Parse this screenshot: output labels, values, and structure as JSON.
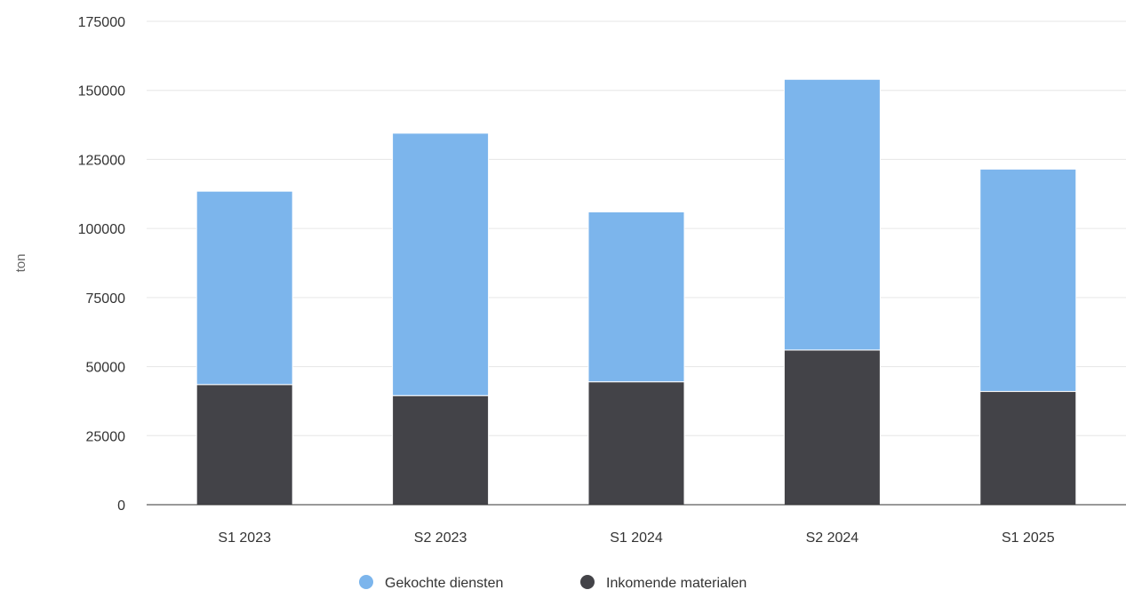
{
  "chart_data": {
    "type": "bar",
    "stacked": true,
    "categories": [
      "S1 2023",
      "S2 2023",
      "S1 2024",
      "S2 2024",
      "S1 2025"
    ],
    "series": [
      {
        "name": "Inkomende materialen",
        "color": "#434348",
        "values": [
          43500,
          39500,
          44500,
          56000,
          41000
        ]
      },
      {
        "name": "Gekochte diensten",
        "color": "#7cb5ec",
        "values": [
          70000,
          95000,
          61500,
          98000,
          80500
        ]
      }
    ],
    "ylabel": "ton",
    "ylim": [
      0,
      175000
    ],
    "yticks": [
      "0",
      "25000",
      "50000",
      "75000",
      "100000",
      "125000",
      "150000",
      "175000"
    ],
    "grid": true,
    "legend_position": "bottom",
    "legend": [
      {
        "label": "Gekochte diensten",
        "color": "#7cb5ec"
      },
      {
        "label": "Inkomende materialen",
        "color": "#434348"
      }
    ]
  }
}
